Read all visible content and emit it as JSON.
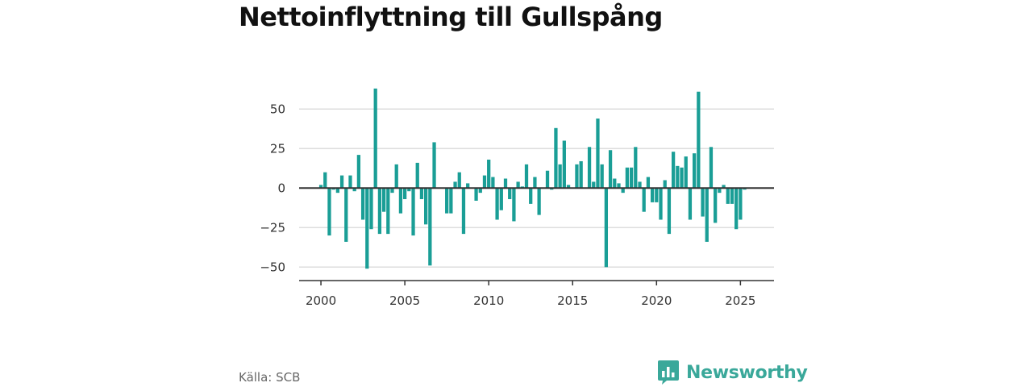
{
  "header": {
    "title": "Nettoinflyttning till Gullspång"
  },
  "footer": {
    "source": "Källa: SCB",
    "brand": "Newsworthy"
  },
  "colors": {
    "bar": "#1a9e96",
    "zero_line": "#333333",
    "grid": "#dddddd",
    "brand": "#3aa89a"
  },
  "icons": {
    "brand_logo": "bar-chart-speech-bubble-icon"
  },
  "chart_data": {
    "type": "bar",
    "title": "Nettoinflyttning till Gullspång",
    "xlabel": "",
    "ylabel": "",
    "xlim": [
      1998.7,
      2027.0
    ],
    "ylim": [
      -57,
      68
    ],
    "xticks": [
      2000,
      2005,
      2010,
      2015,
      2020,
      2025
    ],
    "xtick_labels": [
      "2000",
      "2005",
      "2010",
      "2015",
      "2020",
      "2025"
    ],
    "yticks": [
      -50,
      -25,
      0,
      25,
      50
    ],
    "ytick_labels": [
      "−50",
      "−25",
      "0",
      "25",
      "50"
    ],
    "grid": true,
    "frequency": "quarterly",
    "x": [
      2000.0,
      2000.25,
      2000.5,
      2000.75,
      2001.0,
      2001.25,
      2001.5,
      2001.75,
      2002.0,
      2002.25,
      2002.5,
      2002.75,
      2003.0,
      2003.25,
      2003.5,
      2003.75,
      2004.0,
      2004.25,
      2004.5,
      2004.75,
      2005.0,
      2005.25,
      2005.5,
      2005.75,
      2006.0,
      2006.25,
      2006.5,
      2006.75,
      2007.0,
      2007.25,
      2007.5,
      2007.75,
      2008.0,
      2008.25,
      2008.5,
      2008.75,
      2009.0,
      2009.25,
      2009.5,
      2009.75,
      2010.0,
      2010.25,
      2010.5,
      2010.75,
      2011.0,
      2011.25,
      2011.5,
      2011.75,
      2012.0,
      2012.25,
      2012.5,
      2012.75,
      2013.0,
      2013.25,
      2013.5,
      2013.75,
      2014.0,
      2014.25,
      2014.5,
      2014.75,
      2015.0,
      2015.25,
      2015.5,
      2015.75,
      2016.0,
      2016.25,
      2016.5,
      2016.75,
      2017.0,
      2017.25,
      2017.5,
      2017.75,
      2018.0,
      2018.25,
      2018.5,
      2018.75,
      2019.0,
      2019.25,
      2019.5,
      2019.75,
      2020.0,
      2020.25,
      2020.5,
      2020.75,
      2021.0,
      2021.25,
      2021.5,
      2021.75,
      2022.0,
      2022.25,
      2022.5,
      2022.75,
      2023.0,
      2023.25,
      2023.5,
      2023.75,
      2024.0,
      2024.25,
      2024.5,
      2024.75,
      2025.0,
      2025.25
    ],
    "values": [
      2,
      10,
      -30,
      -1,
      -3,
      8,
      -34,
      8,
      -2,
      21,
      -20,
      -51,
      -26,
      63,
      -29,
      -15,
      -29,
      -3,
      15,
      -16,
      -7,
      -2,
      -30,
      16,
      -7,
      -23,
      -49,
      29,
      0,
      0,
      -16,
      -16,
      4,
      10,
      -29,
      3,
      0,
      -8,
      -3,
      8,
      18,
      7,
      -20,
      -14,
      6,
      -7,
      -21,
      4,
      1,
      15,
      -10,
      7,
      -17,
      0,
      11,
      -1,
      38,
      15,
      30,
      2,
      0,
      15,
      17,
      0,
      26,
      4,
      44,
      15,
      -50,
      24,
      6,
      3,
      -3,
      13,
      13,
      26,
      4,
      -15,
      7,
      -9,
      -9,
      -20,
      5,
      -29,
      23,
      14,
      13,
      20,
      -20,
      22,
      61,
      -18,
      -34,
      26,
      -22,
      -3,
      2,
      -10,
      -10,
      -26,
      -20,
      -1
    ]
  }
}
